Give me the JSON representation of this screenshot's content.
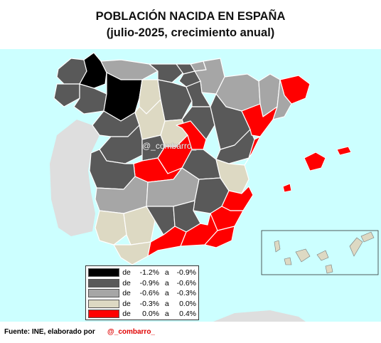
{
  "title_line1": "POBLACIÓN NACIDA EN ESPAÑA",
  "title_line2": "(julio-2025, crecimiento anual)",
  "watermark": "@_combarro_",
  "legend": [
    {
      "word": "de",
      "from": "-1.2%",
      "a": "a",
      "to": "-0.9%",
      "color": "#000000"
    },
    {
      "word": "de",
      "from": "-0.9%",
      "a": "a",
      "to": "-0.6%",
      "color": "#595959"
    },
    {
      "word": "de",
      "from": "-0.6%",
      "a": "a",
      "to": "-0.3%",
      "color": "#a6a6a6"
    },
    {
      "word": "de",
      "from": "-0.3%",
      "a": "a",
      "to": "0.0%",
      "color": "#ddd9c3"
    },
    {
      "word": "de",
      "from": "0.0%",
      "a": "a",
      "to": "0.4%",
      "color": "#ff0000"
    }
  ],
  "source_text": "Fuente: INE, elaborado por",
  "source_handle": "@_combarro_",
  "colors": {
    "sea": "#ccffff",
    "portugal": "#e0e0e0",
    "border": "#ffffff"
  }
}
